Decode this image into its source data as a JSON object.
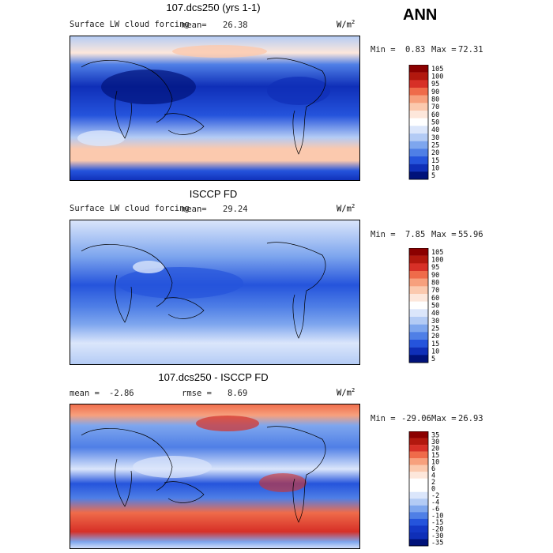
{
  "season": "ANN",
  "panels": [
    {
      "title": "107.dcs250 (yrs 1-1)",
      "subtitle": "Surface LW cloud forcing",
      "mean_label": "mean=",
      "mean_value": "26.38",
      "units": "W/m",
      "units_exp": "2",
      "min_label": "Min =",
      "min_value": "0.83",
      "max_label": "Max =",
      "max_value": "72.31",
      "legend": [
        "105",
        "100",
        "95",
        "90",
        "80",
        "70",
        "60",
        "50",
        "40",
        "30",
        "25",
        "20",
        "15",
        "10",
        "5"
      ]
    },
    {
      "title": "ISCCP FD",
      "subtitle": "Surface LW cloud forcing",
      "mean_label": "mean=",
      "mean_value": "29.24",
      "units": "W/m",
      "units_exp": "2",
      "min_label": "Min =",
      "min_value": "7.85",
      "max_label": "Max =",
      "max_value": "55.96",
      "legend": [
        "105",
        "100",
        "95",
        "90",
        "80",
        "70",
        "60",
        "50",
        "40",
        "30",
        "25",
        "20",
        "15",
        "10",
        "5"
      ]
    },
    {
      "title": "107.dcs250 - ISCCP FD",
      "mean_label": "mean =",
      "mean_value": "-2.86",
      "rmse_label": "rmse =",
      "rmse_value": "8.69",
      "units": "W/m",
      "units_exp": "2",
      "min_label": "Min =",
      "min_value": "-29.06",
      "max_label": "Max =",
      "max_value": "26.93",
      "legend": [
        "35",
        "30",
        "20",
        "15",
        "10",
        "6",
        "4",
        "2",
        "0",
        "-2",
        "-4",
        "-6",
        "-10",
        "-15",
        "-20",
        "-30",
        "-35"
      ]
    }
  ],
  "colors": {
    "abs_scale": [
      "#8b0000",
      "#b2180e",
      "#d73027",
      "#ef6b4a",
      "#f7a07d",
      "#fbc9ae",
      "#fde7db",
      "#ffffff",
      "#dbe6fb",
      "#b3cbf5",
      "#7ea6ee",
      "#4f7fe6",
      "#2554dc",
      "#0f2fb8",
      "#00127a"
    ],
    "diff_scale": [
      "#8b0000",
      "#b2180e",
      "#d73027",
      "#ef6b4a",
      "#f7a07d",
      "#fbc9ae",
      "#fde7db",
      "#ffffff",
      "#ffffff",
      "#dbe6fb",
      "#b3cbf5",
      "#7ea6ee",
      "#4f7fe6",
      "#2554dc",
      "#1438c6",
      "#0f2fb8",
      "#00127a"
    ]
  }
}
